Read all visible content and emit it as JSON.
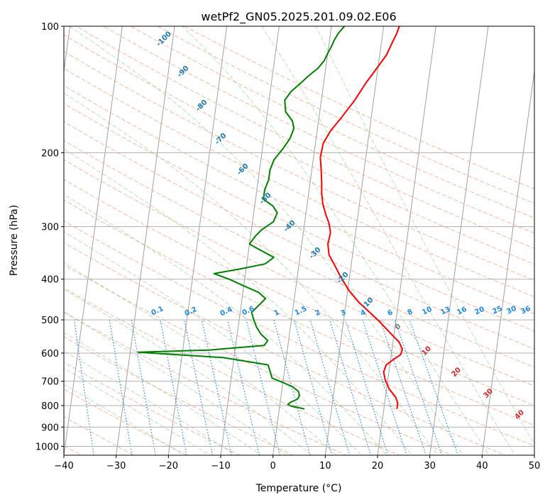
{
  "chart_data": {
    "type": "line",
    "title": "wetPf2_GN05.2025.201.09.02.E06",
    "xlabel": "Temperature (°C)",
    "ylabel": "Pressure (hPa)",
    "xlim": [
      -40,
      50
    ],
    "ylim": [
      1050,
      100
    ],
    "y_scale": "log",
    "x_ticks": [
      "−40",
      "−30",
      "−20",
      "−10",
      "0",
      "10",
      "20",
      "30",
      "40",
      "50"
    ],
    "x_tick_values": [
      -40,
      -30,
      -20,
      -10,
      0,
      10,
      20,
      30,
      40,
      50
    ],
    "y_ticks": [
      "100",
      "200",
      "300",
      "400",
      "500",
      "600",
      "700",
      "800",
      "900",
      "1000"
    ],
    "y_tick_values": [
      100,
      200,
      300,
      400,
      500,
      600,
      700,
      800,
      900,
      1000
    ],
    "grid": true,
    "series": [
      {
        "color": "#ff0000",
        "points": [
          [
            22.5,
            815
          ],
          [
            22.5,
            790
          ],
          [
            22.0,
            765
          ],
          [
            20.5,
            730
          ],
          [
            19.5,
            695
          ],
          [
            19.0,
            665
          ],
          [
            19.3,
            640
          ],
          [
            20.5,
            622
          ],
          [
            21.8,
            605
          ],
          [
            22.0,
            588
          ],
          [
            21.2,
            565
          ],
          [
            19.8,
            545
          ],
          [
            18.0,
            520
          ],
          [
            16.5,
            500
          ],
          [
            14.8,
            480
          ],
          [
            12.5,
            455
          ],
          [
            10.2,
            425
          ],
          [
            8.3,
            395
          ],
          [
            6.8,
            370
          ],
          [
            5.5,
            350
          ],
          [
            5.0,
            330
          ],
          [
            5.2,
            310
          ],
          [
            4.7,
            295
          ],
          [
            3.8,
            280
          ],
          [
            3.0,
            265
          ],
          [
            2.5,
            250
          ],
          [
            2.2,
            235
          ],
          [
            1.8,
            220
          ],
          [
            1.3,
            205
          ],
          [
            1.5,
            190
          ],
          [
            2.5,
            178
          ],
          [
            4.3,
            165
          ],
          [
            6.4,
            150
          ],
          [
            8.0,
            137
          ],
          [
            9.6,
            127
          ],
          [
            11.3,
            117
          ],
          [
            12.0,
            110
          ],
          [
            12.7,
            104
          ],
          [
            13.0,
            100
          ]
        ]
      },
      {
        "color": "#008000",
        "points": [
          [
            4.8,
            815
          ],
          [
            3.5,
            808
          ],
          [
            2.3,
            803
          ],
          [
            1.5,
            795
          ],
          [
            2.0,
            785
          ],
          [
            2.8,
            777
          ],
          [
            3.3,
            770
          ],
          [
            3.5,
            755
          ],
          [
            3.2,
            740
          ],
          [
            2.0,
            722
          ],
          [
            0.0,
            705
          ],
          [
            -2.2,
            688
          ],
          [
            -2.7,
            665
          ],
          [
            -3.3,
            640
          ],
          [
            -12.0,
            615
          ],
          [
            -28.5,
            597
          ],
          [
            -15.0,
            590
          ],
          [
            -4.5,
            575
          ],
          [
            -4.0,
            560
          ],
          [
            -5.5,
            540
          ],
          [
            -6.5,
            520
          ],
          [
            -7.2,
            500
          ],
          [
            -7.8,
            480
          ],
          [
            -6.5,
            460
          ],
          [
            -5.5,
            445
          ],
          [
            -7.0,
            430
          ],
          [
            -10.0,
            415
          ],
          [
            -13.0,
            400
          ],
          [
            -16.0,
            388
          ],
          [
            -11.0,
            378
          ],
          [
            -6.5,
            368
          ],
          [
            -5.0,
            355
          ],
          [
            -7.0,
            345
          ],
          [
            -10.0,
            330
          ],
          [
            -9.0,
            315
          ],
          [
            -8.0,
            305
          ],
          [
            -6.0,
            292
          ],
          [
            -5.5,
            278
          ],
          [
            -6.5,
            268
          ],
          [
            -8.5,
            258
          ],
          [
            -8.5,
            245
          ],
          [
            -8.0,
            232
          ],
          [
            -8.0,
            220
          ],
          [
            -7.5,
            208
          ],
          [
            -6.0,
            195
          ],
          [
            -5.0,
            185
          ],
          [
            -4.5,
            175
          ],
          [
            -5.0,
            168
          ],
          [
            -6.5,
            160
          ],
          [
            -7.0,
            150
          ],
          [
            -6.0,
            143
          ],
          [
            -4.5,
            137
          ],
          [
            -3.0,
            131
          ],
          [
            -1.5,
            126
          ],
          [
            -0.5,
            121
          ],
          [
            0.0,
            116
          ],
          [
            0.5,
            112
          ],
          [
            0.9,
            108
          ],
          [
            1.5,
            104
          ],
          [
            2.5,
            100
          ]
        ]
      }
    ],
    "dry_adiabat_labels": [
      "-100",
      "-90",
      "-80",
      "-70",
      "-60",
      "-50",
      "-40",
      "-30",
      "-20",
      "-10",
      "0",
      "10",
      "20",
      "30",
      "40"
    ],
    "mixing_ratio_labels": [
      "0.1",
      "0.2",
      "0.4",
      "0.6",
      "1",
      "1.5",
      "2",
      "3",
      "4",
      "6",
      "8",
      "10",
      "13",
      "16",
      "20",
      "25",
      "30",
      "36"
    ],
    "colors": {
      "temperature": "#ff0000",
      "dewpoint": "#008000",
      "dry_adiabat": "#f4a582",
      "moist_adiabat": "#74c476",
      "mixing_ratio": "#1e88e5",
      "isotherm": "#808080"
    }
  }
}
